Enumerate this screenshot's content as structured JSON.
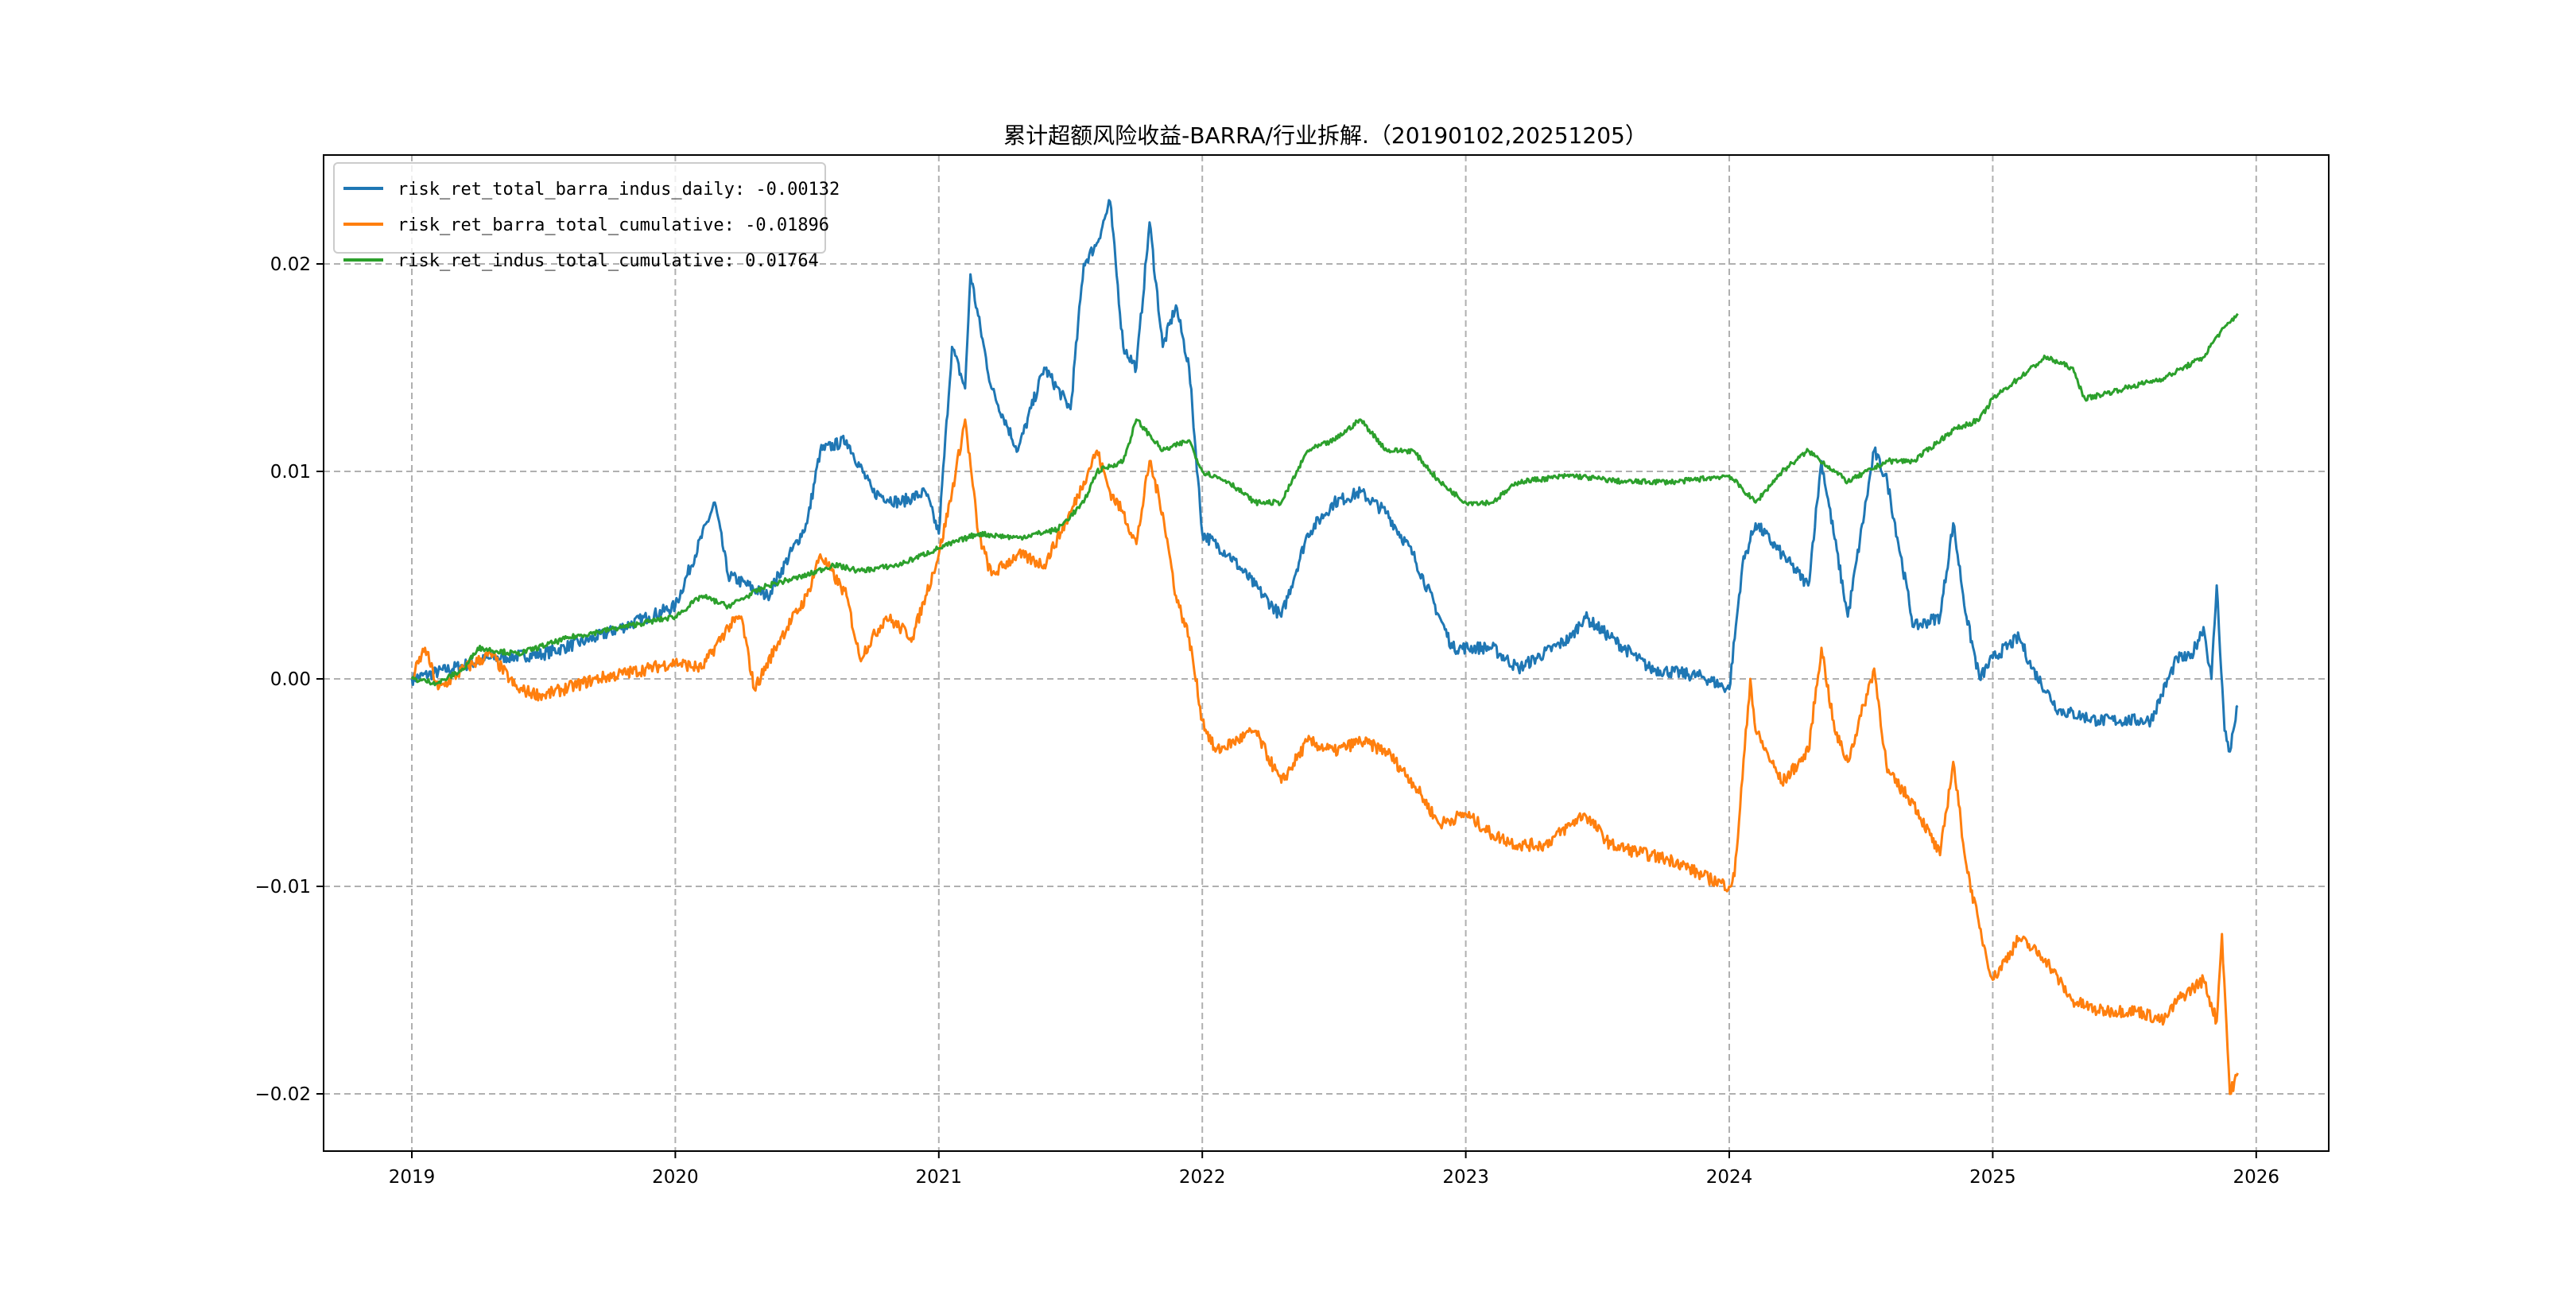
{
  "chart_data": {
    "type": "line",
    "title": "累计超额风险收益-BARRA/行业拆解.（20190102,20251205）",
    "xlabel": "",
    "ylabel": "",
    "xlim": [
      2018.7,
      2026.25
    ],
    "ylim": [
      -0.0228,
      0.0253
    ],
    "grid": true,
    "legend_position": "top-left",
    "x_ticks": [
      2019,
      2020,
      2021,
      2022,
      2023,
      2024,
      2025,
      2026
    ],
    "x_tick_labels": [
      "2019",
      "2020",
      "2021",
      "2022",
      "2023",
      "2024",
      "2025",
      "2026"
    ],
    "y_ticks": [
      0.02,
      0.01,
      0.0,
      -0.01,
      -0.02
    ],
    "y_tick_labels": [
      "0.02",
      "0.01",
      "0.00",
      "−0.01",
      "−0.02"
    ],
    "series": [
      {
        "name": "risk_ret_total_barra_indus_daily: -0.00132",
        "color": "#1f77b4",
        "points": [
          [
            2019.0,
            0
          ],
          [
            2019.3,
            0.001
          ],
          [
            2019.5,
            0.0012
          ],
          [
            2019.7,
            0.002
          ],
          [
            2019.9,
            0.003
          ],
          [
            2020.0,
            0.0035
          ],
          [
            2020.15,
            0.0085
          ],
          [
            2020.2,
            0.005
          ],
          [
            2020.35,
            0.004
          ],
          [
            2020.5,
            0.0075
          ],
          [
            2020.55,
            0.011
          ],
          [
            2020.65,
            0.0115
          ],
          [
            2020.75,
            0.009
          ],
          [
            2020.85,
            0.0085
          ],
          [
            2020.95,
            0.009
          ],
          [
            2021.0,
            0.007
          ],
          [
            2021.05,
            0.016
          ],
          [
            2021.1,
            0.014
          ],
          [
            2021.12,
            0.0195
          ],
          [
            2021.2,
            0.014
          ],
          [
            2021.3,
            0.011
          ],
          [
            2021.4,
            0.015
          ],
          [
            2021.5,
            0.013
          ],
          [
            2021.55,
            0.02
          ],
          [
            2021.6,
            0.021
          ],
          [
            2021.65,
            0.023
          ],
          [
            2021.7,
            0.016
          ],
          [
            2021.75,
            0.015
          ],
          [
            2021.8,
            0.022
          ],
          [
            2021.85,
            0.016
          ],
          [
            2021.9,
            0.018
          ],
          [
            2021.95,
            0.015
          ],
          [
            2022.0,
            0.007
          ],
          [
            2022.1,
            0.006
          ],
          [
            2022.2,
            0.0045
          ],
          [
            2022.3,
            0.003
          ],
          [
            2022.4,
            0.007
          ],
          [
            2022.5,
            0.0085
          ],
          [
            2022.6,
            0.009
          ],
          [
            2022.7,
            0.008
          ],
          [
            2022.8,
            0.006
          ],
          [
            2022.9,
            0.003
          ],
          [
            2022.95,
            0.0015
          ],
          [
            2023.1,
            0.0015
          ],
          [
            2023.2,
            0.0005
          ],
          [
            2023.4,
            0.002
          ],
          [
            2023.45,
            0.003
          ],
          [
            2023.55,
            0.002
          ],
          [
            2023.7,
            0.0005
          ],
          [
            2023.9,
            0.0001
          ],
          [
            2024.0,
            -0.0005
          ],
          [
            2024.05,
            0.0055
          ],
          [
            2024.1,
            0.0075
          ],
          [
            2024.2,
            0.006
          ],
          [
            2024.3,
            0.0045
          ],
          [
            2024.35,
            0.0105
          ],
          [
            2024.45,
            0.003
          ],
          [
            2024.55,
            0.011
          ],
          [
            2024.6,
            0.0095
          ],
          [
            2024.7,
            0.0025
          ],
          [
            2024.8,
            0.003
          ],
          [
            2024.85,
            0.0075
          ],
          [
            2024.9,
            0.003
          ],
          [
            2024.95,
            0
          ],
          [
            2025.0,
            0.001
          ],
          [
            2025.1,
            0.002
          ],
          [
            2025.15,
            0.0005
          ],
          [
            2025.25,
            -0.0015
          ],
          [
            2025.4,
            -0.002
          ],
          [
            2025.6,
            -0.002
          ],
          [
            2025.7,
            0.001
          ],
          [
            2025.75,
            0.001
          ],
          [
            2025.8,
            0.0025
          ],
          [
            2025.83,
            0
          ],
          [
            2025.85,
            0.0045
          ],
          [
            2025.88,
            -0.0025
          ],
          [
            2025.9,
            -0.0035
          ],
          [
            2025.93,
            -0.0013
          ]
        ]
      },
      {
        "name": "risk_ret_barra_total_cumulative: -0.01896",
        "color": "#ff7f0e",
        "points": [
          [
            2019.0,
            0
          ],
          [
            2019.05,
            0.0015
          ],
          [
            2019.1,
            -0.0005
          ],
          [
            2019.2,
            0.0005
          ],
          [
            2019.3,
            0.0012
          ],
          [
            2019.4,
            -0.0005
          ],
          [
            2019.5,
            -0.0008
          ],
          [
            2019.7,
            0
          ],
          [
            2019.9,
            0.0005
          ],
          [
            2020.0,
            0.0008
          ],
          [
            2020.1,
            0.0005
          ],
          [
            2020.2,
            0.0025
          ],
          [
            2020.25,
            0.003
          ],
          [
            2020.3,
            -0.0005
          ],
          [
            2020.4,
            0.002
          ],
          [
            2020.5,
            0.004
          ],
          [
            2020.55,
            0.006
          ],
          [
            2020.65,
            0.004
          ],
          [
            2020.7,
            0.001
          ],
          [
            2020.8,
            0.003
          ],
          [
            2020.9,
            0.002
          ],
          [
            2020.95,
            0.004
          ],
          [
            2021.0,
            0.006
          ],
          [
            2021.05,
            0.009
          ],
          [
            2021.1,
            0.0125
          ],
          [
            2021.15,
            0.007
          ],
          [
            2021.2,
            0.005
          ],
          [
            2021.3,
            0.006
          ],
          [
            2021.4,
            0.0055
          ],
          [
            2021.5,
            0.008
          ],
          [
            2021.55,
            0.0095
          ],
          [
            2021.6,
            0.011
          ],
          [
            2021.65,
            0.009
          ],
          [
            2021.7,
            0.008
          ],
          [
            2021.75,
            0.0065
          ],
          [
            2021.8,
            0.0105
          ],
          [
            2021.85,
            0.008
          ],
          [
            2021.9,
            0.004
          ],
          [
            2021.95,
            0.002
          ],
          [
            2022.0,
            -0.002
          ],
          [
            2022.05,
            -0.0035
          ],
          [
            2022.2,
            -0.0025
          ],
          [
            2022.3,
            -0.005
          ],
          [
            2022.4,
            -0.003
          ],
          [
            2022.5,
            -0.0035
          ],
          [
            2022.6,
            -0.003
          ],
          [
            2022.7,
            -0.0035
          ],
          [
            2022.8,
            -0.005
          ],
          [
            2022.9,
            -0.007
          ],
          [
            2023.0,
            -0.0065
          ],
          [
            2023.1,
            -0.0075
          ],
          [
            2023.2,
            -0.008
          ],
          [
            2023.3,
            -0.008
          ],
          [
            2023.4,
            -0.007
          ],
          [
            2023.45,
            -0.0065
          ],
          [
            2023.55,
            -0.008
          ],
          [
            2023.7,
            -0.0085
          ],
          [
            2023.8,
            -0.0088
          ],
          [
            2023.9,
            -0.0095
          ],
          [
            2024.0,
            -0.01
          ],
          [
            2024.02,
            -0.0095
          ],
          [
            2024.08,
            0
          ],
          [
            2024.1,
            -0.0025
          ],
          [
            2024.2,
            -0.005
          ],
          [
            2024.3,
            -0.0035
          ],
          [
            2024.35,
            0.0015
          ],
          [
            2024.4,
            -0.0025
          ],
          [
            2024.45,
            -0.004
          ],
          [
            2024.55,
            0.0005
          ],
          [
            2024.6,
            -0.0045
          ],
          [
            2024.7,
            -0.006
          ],
          [
            2024.8,
            -0.0085
          ],
          [
            2024.85,
            -0.004
          ],
          [
            2024.9,
            -0.009
          ],
          [
            2024.95,
            -0.012
          ],
          [
            2025.0,
            -0.0145
          ],
          [
            2025.1,
            -0.0125
          ],
          [
            2025.2,
            -0.0135
          ],
          [
            2025.3,
            -0.0155
          ],
          [
            2025.4,
            -0.016
          ],
          [
            2025.55,
            -0.016
          ],
          [
            2025.65,
            -0.0165
          ],
          [
            2025.7,
            -0.0155
          ],
          [
            2025.8,
            -0.0145
          ],
          [
            2025.85,
            -0.0165
          ],
          [
            2025.87,
            -0.0123
          ],
          [
            2025.9,
            -0.02
          ],
          [
            2025.93,
            -0.019
          ]
        ]
      },
      {
        "name": "risk_ret_indus_total_cumulative: 0.01764",
        "color": "#2ca02c",
        "points": [
          [
            2019.0,
            0
          ],
          [
            2019.1,
            -0.0002
          ],
          [
            2019.2,
            0.0005
          ],
          [
            2019.25,
            0.0015
          ],
          [
            2019.4,
            0.0012
          ],
          [
            2019.6,
            0.002
          ],
          [
            2019.8,
            0.0025
          ],
          [
            2020.0,
            0.003
          ],
          [
            2020.1,
            0.004
          ],
          [
            2020.2,
            0.0035
          ],
          [
            2020.35,
            0.0045
          ],
          [
            2020.5,
            0.005
          ],
          [
            2020.6,
            0.0055
          ],
          [
            2020.7,
            0.0052
          ],
          [
            2020.85,
            0.0055
          ],
          [
            2021.0,
            0.0063
          ],
          [
            2021.15,
            0.007
          ],
          [
            2021.3,
            0.0068
          ],
          [
            2021.45,
            0.0072
          ],
          [
            2021.55,
            0.0085
          ],
          [
            2021.6,
            0.01
          ],
          [
            2021.7,
            0.0105
          ],
          [
            2021.75,
            0.0125
          ],
          [
            2021.85,
            0.011
          ],
          [
            2021.95,
            0.0115
          ],
          [
            2022.0,
            0.01
          ],
          [
            2022.1,
            0.0095
          ],
          [
            2022.2,
            0.0085
          ],
          [
            2022.3,
            0.0085
          ],
          [
            2022.4,
            0.011
          ],
          [
            2022.5,
            0.0115
          ],
          [
            2022.6,
            0.0125
          ],
          [
            2022.7,
            0.011
          ],
          [
            2022.8,
            0.011
          ],
          [
            2022.9,
            0.0095
          ],
          [
            2023.0,
            0.0085
          ],
          [
            2023.1,
            0.0085
          ],
          [
            2023.2,
            0.0095
          ],
          [
            2023.4,
            0.0098
          ],
          [
            2023.6,
            0.0095
          ],
          [
            2023.8,
            0.0095
          ],
          [
            2024.0,
            0.0098
          ],
          [
            2024.1,
            0.0085
          ],
          [
            2024.2,
            0.01
          ],
          [
            2024.3,
            0.011
          ],
          [
            2024.45,
            0.0095
          ],
          [
            2024.6,
            0.0105
          ],
          [
            2024.7,
            0.0105
          ],
          [
            2024.85,
            0.012
          ],
          [
            2024.95,
            0.0125
          ],
          [
            2025.0,
            0.0135
          ],
          [
            2025.1,
            0.0145
          ],
          [
            2025.2,
            0.0155
          ],
          [
            2025.3,
            0.015
          ],
          [
            2025.35,
            0.0135
          ],
          [
            2025.5,
            0.014
          ],
          [
            2025.65,
            0.0145
          ],
          [
            2025.8,
            0.0155
          ],
          [
            2025.85,
            0.0165
          ],
          [
            2025.93,
            0.0176
          ]
        ]
      }
    ]
  }
}
